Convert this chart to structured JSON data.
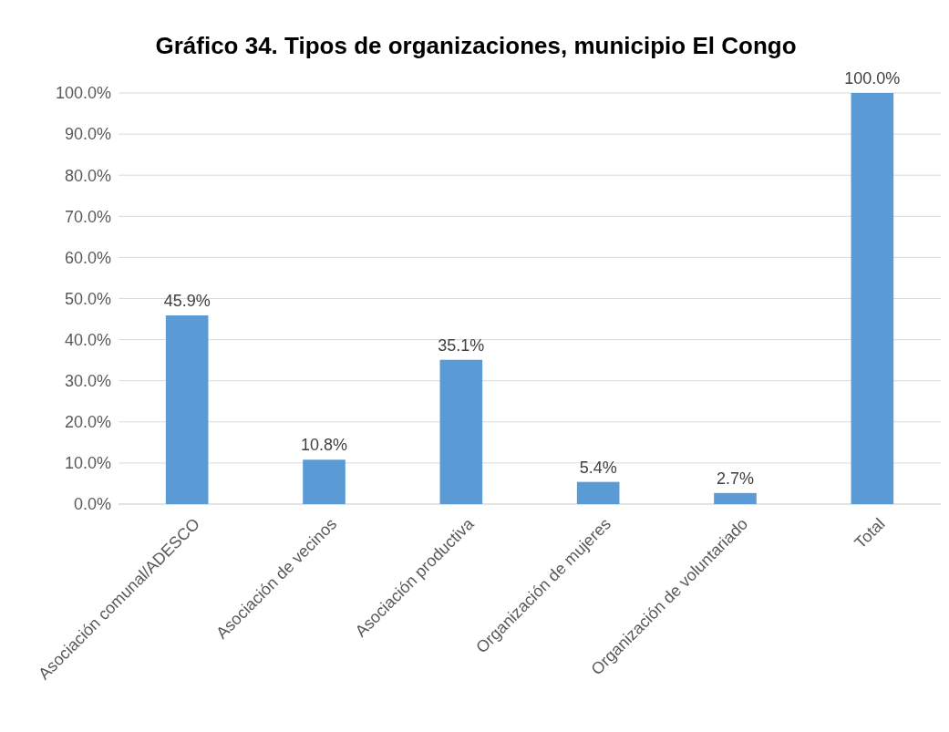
{
  "chart_data": {
    "type": "bar",
    "title": "Gráfico 34. Tipos de organizaciones, municipio El Congo",
    "categories": [
      "Asociación comunal/ADESCO",
      "Asociación de vecinos",
      "Asociación productiva",
      "Organización de mujeres",
      "Organización de voluntariado",
      "Total"
    ],
    "values": [
      45.9,
      10.8,
      35.1,
      5.4,
      2.7,
      100.0
    ],
    "value_labels": [
      "45.9%",
      "10.8%",
      "35.1%",
      "5.4%",
      "2.7%",
      "100.0%"
    ],
    "color": "#5b9bd5",
    "ylim": [
      0,
      100
    ],
    "yticks": [
      {
        "value": 0,
        "label": "0.0%"
      },
      {
        "value": 10,
        "label": "10.0%"
      },
      {
        "value": 20,
        "label": "20.0%"
      },
      {
        "value": 30,
        "label": "30.0%"
      },
      {
        "value": 40,
        "label": "40.0%"
      },
      {
        "value": 50,
        "label": "50.0%"
      },
      {
        "value": 60,
        "label": "60.0%"
      },
      {
        "value": 70,
        "label": "70.0%"
      },
      {
        "value": 80,
        "label": "80.0%"
      },
      {
        "value": 90,
        "label": "90.0%"
      },
      {
        "value": 100,
        "label": "100.0%"
      }
    ],
    "grid": "y"
  }
}
